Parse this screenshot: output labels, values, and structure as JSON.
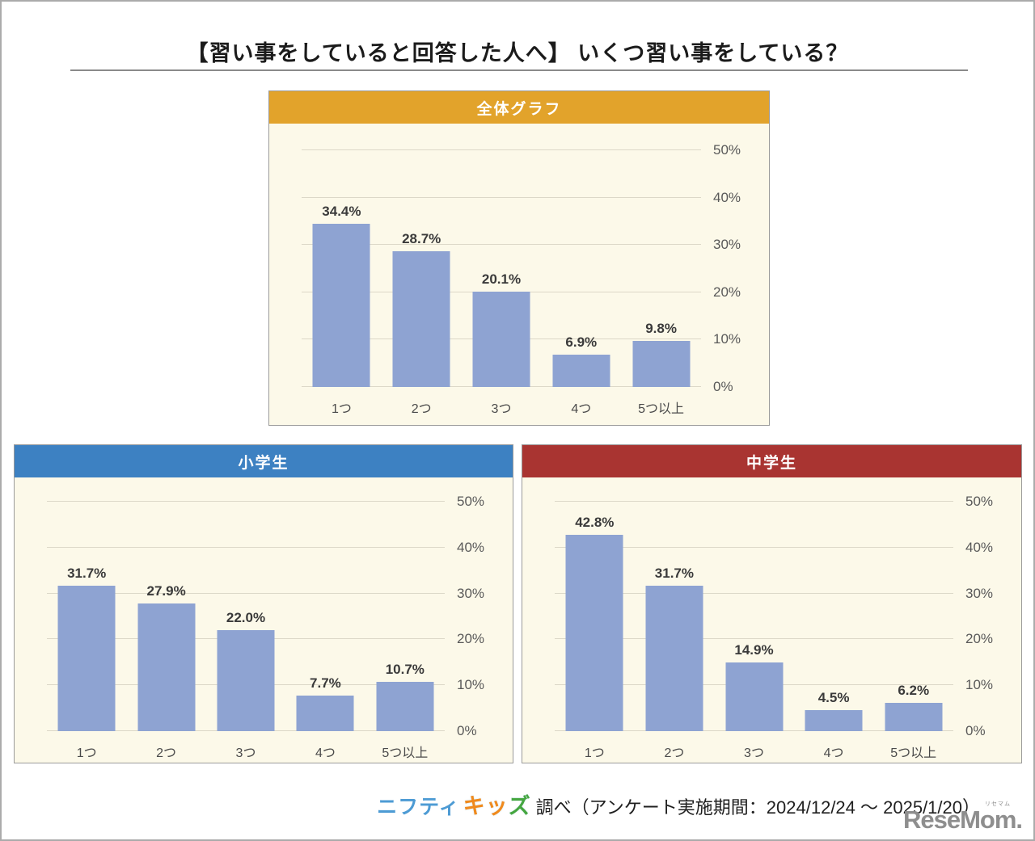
{
  "page": {
    "title": "【習い事をしていると回答した人へ】 いくつ習い事をしている？"
  },
  "footer": {
    "brand_nifty": "ニフティ",
    "brand_kids": [
      "キ",
      "ッ",
      "ズ"
    ],
    "survey_text": "調べ（アンケート実施期間：2024/12/24 ～ 2025/1/20）",
    "resemom_logo": "ReseMom.",
    "resemom_ruby": "リセマム",
    "colors": {
      "nifty_blue": "#4d9bd4",
      "kids_orange": "#f08a1d",
      "kids_green": "#45a63f",
      "resemom_gray": "#8e8e8e"
    }
  },
  "chart_data": [
    {
      "type": "bar",
      "title": "全体グラフ",
      "header_color": "#e2a32b",
      "bar_color": "#8ea3d2",
      "categories": [
        "1つ",
        "2つ",
        "3つ",
        "4つ",
        "5つ以上"
      ],
      "values": [
        34.4,
        28.7,
        20.1,
        6.9,
        9.8
      ],
      "value_labels": [
        "34.4%",
        "28.7%",
        "20.1%",
        "6.9%",
        "9.8%"
      ],
      "ylim": [
        0,
        50
      ],
      "yticks": [
        0,
        10,
        20,
        30,
        40,
        50
      ],
      "ytick_labels": [
        "0%",
        "10%",
        "20%",
        "30%",
        "40%",
        "50%"
      ],
      "y_axis_side": "right",
      "grid": true,
      "legend": "none",
      "background": "#fcf9e9"
    },
    {
      "type": "bar",
      "title": "小学生",
      "header_color": "#3d81c2",
      "bar_color": "#8ea3d2",
      "categories": [
        "1つ",
        "2つ",
        "3つ",
        "4つ",
        "5つ以上"
      ],
      "values": [
        31.7,
        27.9,
        22.0,
        7.7,
        10.7
      ],
      "value_labels": [
        "31.7%",
        "27.9%",
        "22.0%",
        "7.7%",
        "10.7%"
      ],
      "ylim": [
        0,
        50
      ],
      "yticks": [
        0,
        10,
        20,
        30,
        40,
        50
      ],
      "ytick_labels": [
        "0%",
        "10%",
        "20%",
        "30%",
        "40%",
        "50%"
      ],
      "y_axis_side": "right",
      "grid": true,
      "legend": "none",
      "background": "#fcf9e9"
    },
    {
      "type": "bar",
      "title": "中学生",
      "header_color": "#a93431",
      "bar_color": "#8ea3d2",
      "categories": [
        "1つ",
        "2つ",
        "3つ",
        "4つ",
        "5つ以上"
      ],
      "values": [
        42.8,
        31.7,
        14.9,
        4.5,
        6.2
      ],
      "value_labels": [
        "42.8%",
        "31.7%",
        "14.9%",
        "4.5%",
        "6.2%"
      ],
      "ylim": [
        0,
        50
      ],
      "yticks": [
        0,
        10,
        20,
        30,
        40,
        50
      ],
      "ytick_labels": [
        "0%",
        "10%",
        "20%",
        "30%",
        "40%",
        "50%"
      ],
      "y_axis_side": "right",
      "grid": true,
      "legend": "none",
      "background": "#fcf9e9"
    }
  ]
}
